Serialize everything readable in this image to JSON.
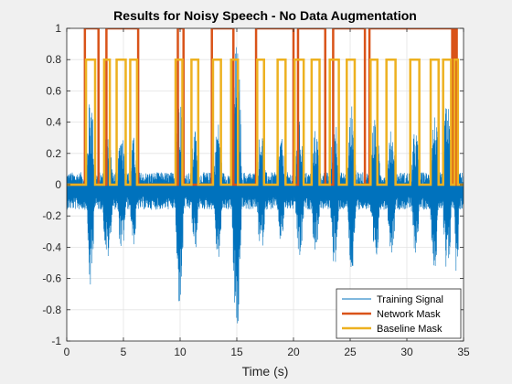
{
  "chart_data": {
    "type": "line",
    "title": "Results for Noisy Speech - No Data Augmentation",
    "xlabel": "Time (s)",
    "ylabel": "",
    "xlim": [
      0,
      35
    ],
    "ylim": [
      -1,
      1
    ],
    "xticks": [
      0,
      5,
      10,
      15,
      20,
      25,
      30,
      35
    ],
    "yticks": [
      -1,
      -0.8,
      -0.6,
      -0.4,
      -0.2,
      0,
      0.2,
      0.4,
      0.6,
      0.8,
      1
    ],
    "xtick_labels": [
      "0",
      "5",
      "10",
      "15",
      "20",
      "25",
      "30",
      "35"
    ],
    "ytick_labels": [
      "-1",
      "-0.8",
      "-0.6",
      "-0.4",
      "-0.2",
      "0",
      "0.2",
      "0.4",
      "0.6",
      "0.8",
      "1"
    ],
    "grid": true,
    "legend_position": "bottom-right",
    "series": [
      {
        "name": "Training Signal",
        "color": "#0072BD",
        "noise_amplitude": 0.12,
        "bursts": [
          {
            "t": [
              1.8,
              2.4
            ],
            "amp": 0.65
          },
          {
            "t": [
              3.2,
              4.0
            ],
            "amp": 0.45
          },
          {
            "t": [
              4.5,
              5.2
            ],
            "amp": 0.4
          },
          {
            "t": [
              5.6,
              6.2
            ],
            "amp": 0.35
          },
          {
            "t": [
              9.6,
              10.3
            ],
            "amp": 0.75
          },
          {
            "t": [
              11.0,
              11.6
            ],
            "amp": 0.4
          },
          {
            "t": [
              13.0,
              13.7
            ],
            "amp": 0.45
          },
          {
            "t": [
              14.6,
              15.4
            ],
            "amp": 0.95
          },
          {
            "t": [
              16.8,
              17.5
            ],
            "amp": 0.4
          },
          {
            "t": [
              18.6,
              19.2
            ],
            "amp": 0.35
          },
          {
            "t": [
              20.2,
              20.9
            ],
            "amp": 0.45
          },
          {
            "t": [
              21.6,
              22.3
            ],
            "amp": 0.4
          },
          {
            "t": [
              23.3,
              24.0
            ],
            "amp": 0.5
          },
          {
            "t": [
              24.8,
              25.5
            ],
            "amp": 0.55
          },
          {
            "t": [
              26.8,
              27.6
            ],
            "amp": 0.5
          },
          {
            "t": [
              28.3,
              29.0
            ],
            "amp": 0.4
          },
          {
            "t": [
              30.4,
              31.1
            ],
            "amp": 0.4
          },
          {
            "t": [
              32.1,
              32.8
            ],
            "amp": 0.5
          },
          {
            "t": [
              33.2,
              33.9
            ],
            "amp": 0.6
          },
          {
            "t": [
              34.2,
              34.6
            ],
            "amp": 0.55
          }
        ]
      },
      {
        "name": "Network Mask",
        "color": "#D95319",
        "value_on": 1,
        "value_off": 0,
        "on_intervals": [
          [
            1.6,
            2.8
          ],
          [
            3.5,
            6.3
          ],
          [
            9.8,
            10.3
          ],
          [
            12.8,
            14.7
          ],
          [
            16.7,
            20.0
          ],
          [
            20.4,
            22.8
          ],
          [
            23.5,
            26.3
          ],
          [
            26.7,
            34.0
          ],
          [
            34.2,
            34.4
          ]
        ]
      },
      {
        "name": "Baseline Mask",
        "color": "#EDB120",
        "value_on": 0.8,
        "value_off": 0,
        "on_intervals": [
          [
            1.7,
            2.5
          ],
          [
            3.3,
            3.8
          ],
          [
            4.4,
            5.2
          ],
          [
            5.6,
            6.2
          ],
          [
            9.6,
            10.2
          ],
          [
            11.0,
            11.6
          ],
          [
            12.9,
            13.6
          ],
          [
            14.5,
            15.1
          ],
          [
            16.8,
            17.4
          ],
          [
            18.6,
            19.3
          ],
          [
            20.1,
            20.9
          ],
          [
            21.6,
            22.3
          ],
          [
            23.2,
            24.0
          ],
          [
            24.7,
            25.4
          ],
          [
            26.8,
            27.4
          ],
          [
            28.2,
            29.0
          ],
          [
            30.3,
            31.1
          ],
          [
            32.1,
            32.8
          ],
          [
            33.2,
            33.9
          ],
          [
            34.2,
            34.5
          ]
        ]
      }
    ]
  }
}
